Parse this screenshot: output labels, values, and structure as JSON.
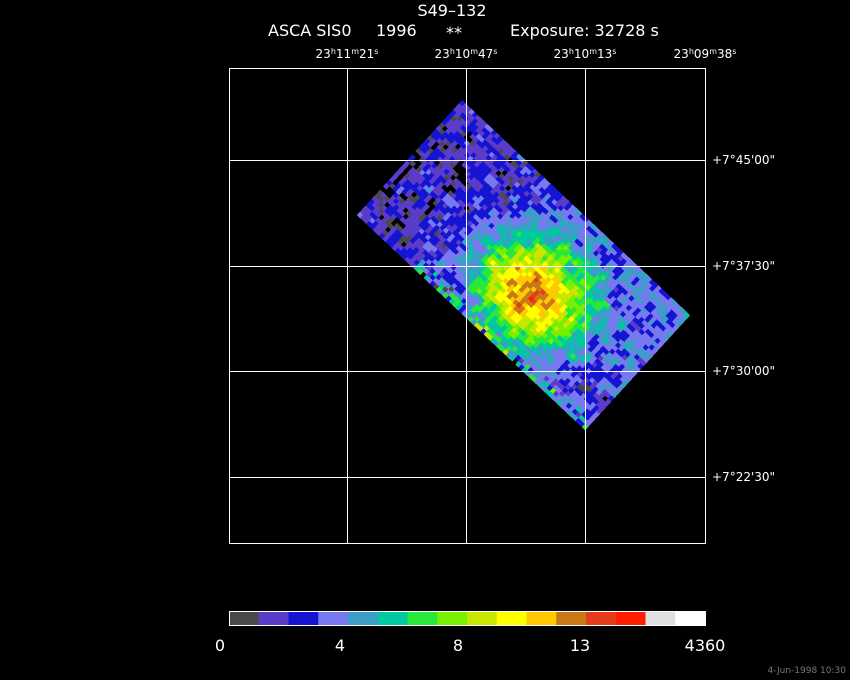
{
  "header": {
    "title": "S49–132",
    "instrument": "ASCA SIS0",
    "year": "1996",
    "flag": "**",
    "exposure": "Exposure: 32728 s"
  },
  "ra_units": [
    "h",
    "m",
    "s"
  ],
  "ra_labels": [
    {
      "h": "23",
      "m": "11",
      "s": "21"
    },
    {
      "h": "23",
      "m": "10",
      "s": "47"
    },
    {
      "h": "23",
      "m": "10",
      "s": "13"
    },
    {
      "h": "23",
      "m": "09",
      "s": "38"
    }
  ],
  "dec_labels": [
    "+7°45'00\"",
    "+7°37'30\"",
    "+7°30'00\"",
    "+7°22'30\""
  ],
  "colorbar": {
    "colors": [
      "#4a4a4a",
      "#5a3cc8",
      "#1414d2",
      "#7878f0",
      "#3c9ec8",
      "#00c8a0",
      "#28e83c",
      "#78f000",
      "#c8e600",
      "#ffff00",
      "#ffc800",
      "#c87814",
      "#e63c1e",
      "#ff1e00",
      "#e0e0e0",
      "#ffffff"
    ],
    "labels": [
      "0",
      "4",
      "8",
      "13",
      "4360"
    ]
  },
  "timestamp": "4-Jun-1998 10:30"
}
